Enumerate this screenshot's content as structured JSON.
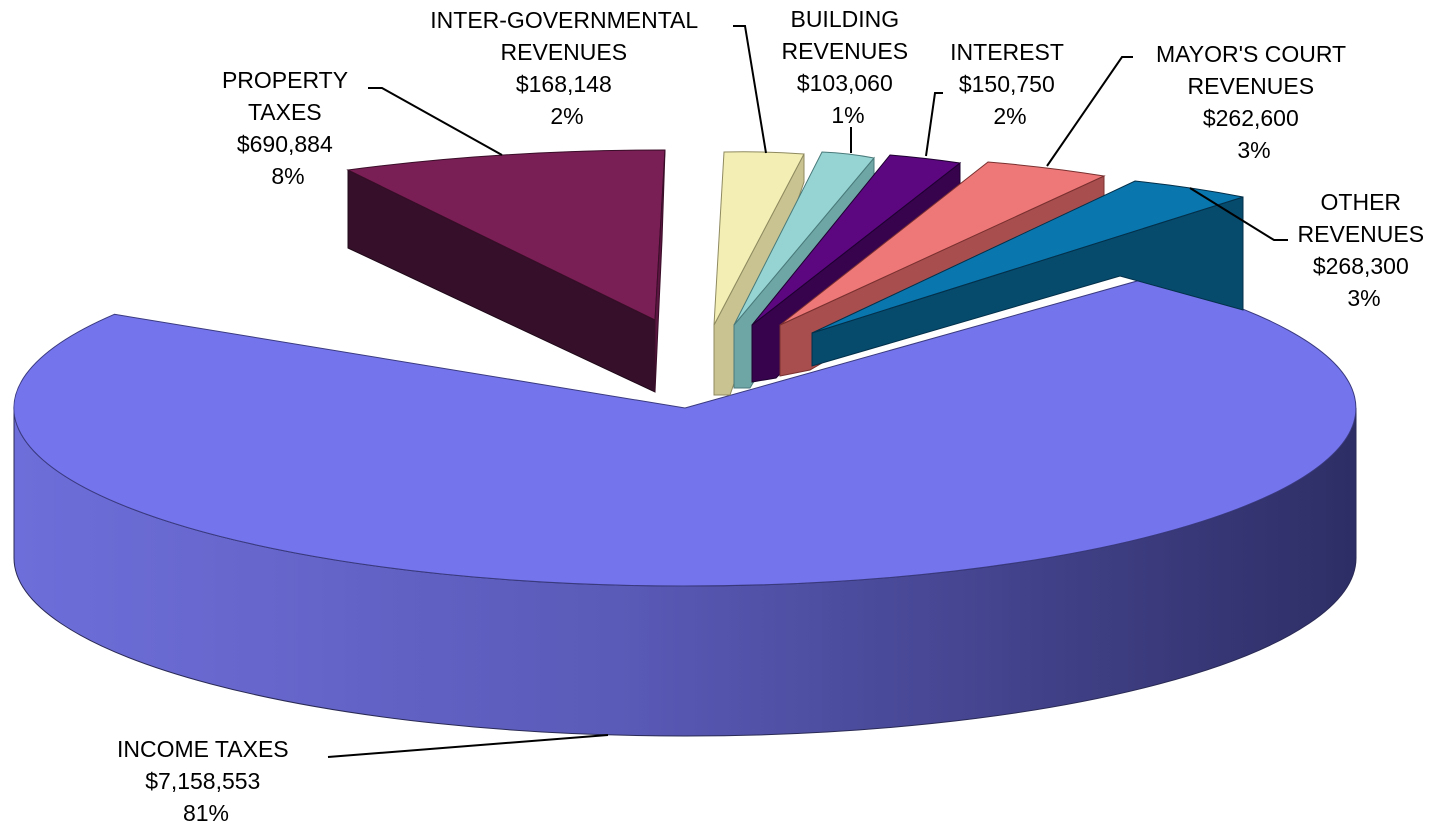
{
  "chart_data": {
    "type": "pie",
    "style": "3d-exploded",
    "title": "",
    "slices": [
      {
        "name": "INCOME TAXES",
        "value": 7158553,
        "value_label": "$7,158,553",
        "percent": "81%",
        "color": "#7474EC",
        "side_color": "#3E3E8A"
      },
      {
        "name": "PROPERTY TAXES",
        "value": 690884,
        "value_label": "$690,884",
        "percent": "8%",
        "color": "#7A1E56",
        "side_color": "#3A0E28"
      },
      {
        "name": "INTER-GOVERNMENTAL REVENUES",
        "value": 168148,
        "value_label": "$168,148",
        "percent": "2%",
        "color": "#F2EEB4",
        "side_color": "#C8C390"
      },
      {
        "name": "BUILDING REVENUES",
        "value": 103060,
        "value_label": "$103,060",
        "percent": "1%",
        "color": "#96D4D4",
        "side_color": "#6EA6A6"
      },
      {
        "name": "INTEREST",
        "value": 150750,
        "value_label": "$150,750",
        "percent": "2%",
        "color": "#5C0680",
        "side_color": "#36034C"
      },
      {
        "name": "MAYOR'S COURT REVENUES",
        "value": 262600,
        "value_label": "$262,600",
        "percent": "3%",
        "color": "#EE7878",
        "side_color": "#A84E4E"
      },
      {
        "name": "OTHER REVENUES",
        "value": 268300,
        "value_label": "$268,300",
        "percent": "3%",
        "color": "#0A76AE",
        "side_color": "#064A6C"
      }
    ],
    "labels": [
      {
        "lines": [
          "INCOME TAXES",
          "$7,158,553",
          "81%"
        ]
      },
      {
        "lines": [
          "PROPERTY",
          "TAXES",
          "$690,884",
          "8%"
        ]
      },
      {
        "lines": [
          "INTER-GOVERNMENTAL",
          "REVENUES",
          "$168,148",
          "2%"
        ]
      },
      {
        "lines": [
          "BUILDING",
          "REVENUES",
          "$103,060",
          "1%"
        ]
      },
      {
        "lines": [
          "INTEREST",
          "$150,750",
          "2%"
        ]
      },
      {
        "lines": [
          "MAYOR'S COURT",
          "REVENUES",
          "$262,600",
          "3%"
        ]
      },
      {
        "lines": [
          "OTHER",
          "REVENUES",
          "$268,300",
          "3%"
        ]
      }
    ]
  }
}
